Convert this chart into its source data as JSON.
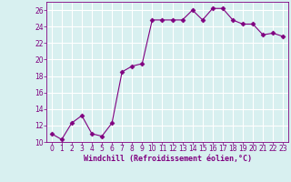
{
  "x": [
    0,
    1,
    2,
    3,
    4,
    5,
    6,
    7,
    8,
    9,
    10,
    11,
    12,
    13,
    14,
    15,
    16,
    17,
    18,
    19,
    20,
    21,
    22,
    23
  ],
  "y": [
    11,
    10.3,
    12.3,
    13.2,
    11,
    10.7,
    12.3,
    18.5,
    19.2,
    19.5,
    24.8,
    24.8,
    24.8,
    24.8,
    26,
    24.8,
    26.2,
    26.2,
    24.8,
    24.3,
    24.3,
    23,
    23.2,
    22.8
  ],
  "line_color": "#800080",
  "marker_color": "#800080",
  "bg_color": "#d8f0f0",
  "grid_color": "#b8dada",
  "xlabel": "Windchill (Refroidissement éolien,°C)",
  "xlabel_color": "#800080",
  "tick_color": "#800080",
  "ylim": [
    10,
    27
  ],
  "xlim": [
    -0.5,
    23.5
  ],
  "yticks": [
    10,
    12,
    14,
    16,
    18,
    20,
    22,
    24,
    26
  ],
  "xticks": [
    0,
    1,
    2,
    3,
    4,
    5,
    6,
    7,
    8,
    9,
    10,
    11,
    12,
    13,
    14,
    15,
    16,
    17,
    18,
    19,
    20,
    21,
    22,
    23
  ],
  "figsize": [
    3.2,
    2.0
  ],
  "dpi": 100,
  "tick_fontsize": 5.5,
  "xlabel_fontsize": 6.0
}
